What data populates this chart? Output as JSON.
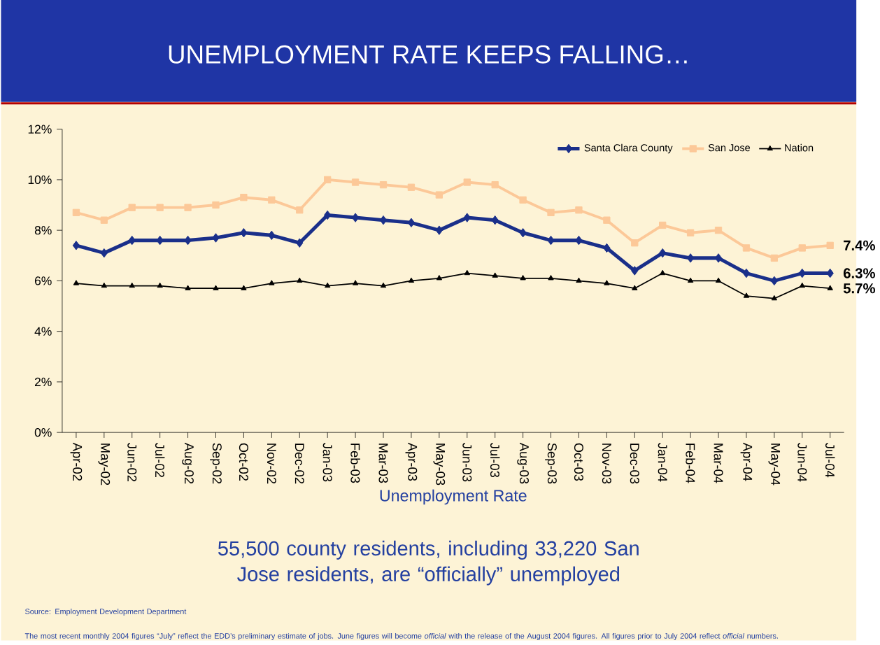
{
  "chart_data": {
    "type": "line",
    "title": "UNEMPLOYMENT RATE KEEPS FALLING…",
    "subtitle": "55,500 county residents, including 33,220 San Jose residents, are “officially” unemployed",
    "xlabel": "Unemployment Rate",
    "categories": [
      "Apr-02",
      "May-02",
      "Jun-02",
      "Jul-02",
      "Aug-02",
      "Sep-02",
      "Oct-02",
      "Nov-02",
      "Dec-02",
      "Jan-03",
      "Feb-03",
      "Mar-03",
      "Apr-03",
      "May-03",
      "Jun-03",
      "Jul-03",
      "Aug-03",
      "Sep-03",
      "Oct-03",
      "Nov-03",
      "Dec-03",
      "Jan-04",
      "Feb-04",
      "Mar-04",
      "Apr-04",
      "May-04",
      "Jun-04",
      "Jul-04"
    ],
    "series": [
      {
        "name": "Santa Clara County",
        "color": "#1a2f8a",
        "marker": "diamond",
        "values": [
          7.4,
          7.1,
          7.6,
          7.6,
          7.6,
          7.7,
          7.9,
          7.8,
          7.5,
          8.6,
          8.5,
          8.4,
          8.3,
          8.0,
          8.5,
          8.4,
          7.9,
          7.6,
          7.6,
          7.3,
          6.4,
          7.1,
          6.9,
          6.9,
          6.3,
          6.0,
          6.3,
          6.3
        ],
        "value_labels": [
          null,
          null,
          null,
          null,
          null,
          null,
          null,
          null,
          null,
          null,
          null,
          null,
          null,
          null,
          null,
          null,
          null,
          null,
          null,
          null,
          null,
          null,
          null,
          null,
          null,
          null,
          null,
          "6.3%"
        ]
      },
      {
        "name": "San Jose",
        "color": "#fcc898",
        "marker": "square",
        "values": [
          8.7,
          8.4,
          8.9,
          8.9,
          8.9,
          9.0,
          9.3,
          9.2,
          8.8,
          10.0,
          9.9,
          9.8,
          9.7,
          9.4,
          9.9,
          9.8,
          9.2,
          8.7,
          8.8,
          8.4,
          7.5,
          8.2,
          7.9,
          8.0,
          7.3,
          6.9,
          7.3,
          7.4
        ],
        "value_labels": [
          null,
          null,
          null,
          null,
          null,
          null,
          null,
          null,
          null,
          null,
          null,
          null,
          null,
          null,
          null,
          null,
          null,
          null,
          null,
          null,
          null,
          null,
          null,
          null,
          null,
          null,
          null,
          "7.4%"
        ]
      },
      {
        "name": "Nation",
        "color": "#000000",
        "marker": "triangle",
        "values": [
          5.9,
          5.8,
          5.8,
          5.8,
          5.7,
          5.7,
          5.7,
          5.9,
          6.0,
          5.8,
          5.9,
          5.8,
          6.0,
          6.1,
          6.3,
          6.2,
          6.1,
          6.1,
          6.0,
          5.9,
          5.7,
          6.3,
          6.0,
          6.0,
          5.4,
          5.3,
          5.8,
          5.7
        ],
        "value_labels": [
          null,
          null,
          null,
          null,
          null,
          null,
          null,
          null,
          null,
          null,
          null,
          null,
          null,
          null,
          null,
          null,
          null,
          null,
          null,
          null,
          null,
          null,
          null,
          null,
          null,
          null,
          null,
          "5.7%"
        ]
      }
    ],
    "ylim": [
      0,
      12
    ],
    "yticks": [
      {
        "value": 0,
        "label": "0%"
      },
      {
        "value": 2,
        "label": "2%"
      },
      {
        "value": 4,
        "label": "4%"
      },
      {
        "value": 6,
        "label": "6%"
      },
      {
        "value": 8,
        "label": "8%"
      },
      {
        "value": 10,
        "label": "10%"
      },
      {
        "value": 12,
        "label": "12%"
      }
    ],
    "legend": "top right",
    "annotations": [
      "Source:  Employment Development Department",
      "The most recent monthly 2004 figures “July” reflect the EDD’s preliminary estimate of jobs. June figures will become *official* with the release of the August 2004 figures.  All figures prior to July 2004 reflect *official* numbers."
    ]
  }
}
